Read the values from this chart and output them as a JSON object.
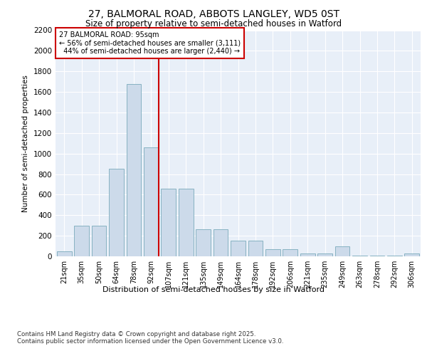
{
  "title_line1": "27, BALMORAL ROAD, ABBOTS LANGLEY, WD5 0ST",
  "title_line2": "Size of property relative to semi-detached houses in Watford",
  "xlabel": "Distribution of semi-detached houses by size in Watford",
  "ylabel": "Number of semi-detached properties",
  "categories": [
    "21sqm",
    "35sqm",
    "50sqm",
    "64sqm",
    "78sqm",
    "92sqm",
    "107sqm",
    "121sqm",
    "135sqm",
    "149sqm",
    "164sqm",
    "178sqm",
    "192sqm",
    "206sqm",
    "221sqm",
    "235sqm",
    "249sqm",
    "263sqm",
    "278sqm",
    "292sqm",
    "306sqm"
  ],
  "values": [
    50,
    300,
    300,
    850,
    1680,
    1060,
    660,
    660,
    260,
    260,
    155,
    155,
    70,
    70,
    30,
    30,
    100,
    10,
    10,
    10,
    30
  ],
  "bar_color": "#ccdaea",
  "bar_edge_color": "#7aaabb",
  "property_label": "27 BALMORAL ROAD: 95sqm",
  "pct_smaller": 56,
  "count_smaller": 3111,
  "pct_larger": 44,
  "count_larger": 2440,
  "vline_color": "#cc0000",
  "annotation_box_color": "#cc0000",
  "ylim": [
    0,
    2200
  ],
  "yticks": [
    0,
    200,
    400,
    600,
    800,
    1000,
    1200,
    1400,
    1600,
    1800,
    2000,
    2200
  ],
  "background_color": "#e8eff8",
  "footnote1": "Contains HM Land Registry data © Crown copyright and database right 2025.",
  "footnote2": "Contains public sector information licensed under the Open Government Licence v3.0."
}
